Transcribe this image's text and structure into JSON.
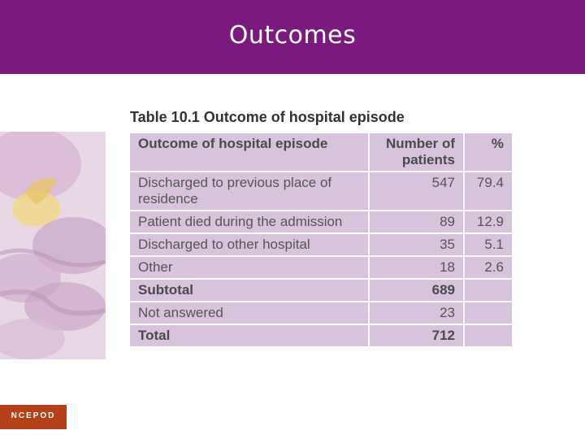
{
  "slide": {
    "title": "Outcomes"
  },
  "table": {
    "caption": "Table 10.1 Outcome of hospital episode",
    "headers": [
      "Outcome of hospital episode",
      "Number of patients",
      "%"
    ],
    "rows": [
      [
        "Discharged to previous place of residence",
        "547",
        "79.4"
      ],
      [
        "Patient died during the admission",
        "89",
        "12.9"
      ],
      [
        "Discharged to other hospital",
        "35",
        "5.1"
      ],
      [
        "Other",
        "18",
        "2.6"
      ],
      [
        "Subtotal",
        "689",
        ""
      ],
      [
        "Not answered",
        "23",
        ""
      ],
      [
        "Total",
        "712",
        ""
      ]
    ]
  },
  "logo": {
    "text": "NCEPOD"
  }
}
